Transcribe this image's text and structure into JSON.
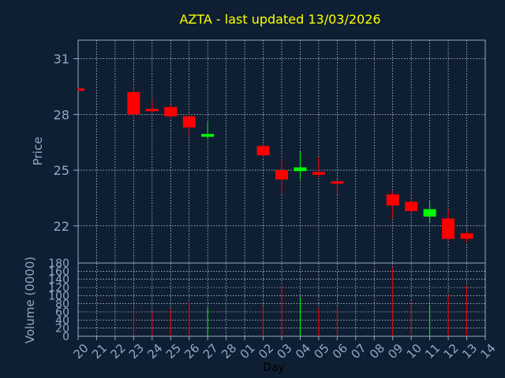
{
  "chart_data": {
    "type": "candlestick",
    "title": "AZTA - last updated 13/03/2026",
    "xlabel": "Day",
    "price_axis": {
      "label": "Price",
      "ticks": [
        22,
        25,
        28,
        31
      ],
      "ylim": [
        20,
        32
      ]
    },
    "volume_axis": {
      "label": "Volume (0000)",
      "ticks": [
        0,
        20,
        40,
        60,
        80,
        100,
        120,
        140,
        160,
        180
      ],
      "ylim": [
        0,
        180
      ]
    },
    "grid": true,
    "days": [
      "20",
      "21",
      "22",
      "23",
      "24",
      "25",
      "26",
      "27",
      "28",
      "01",
      "02",
      "03",
      "04",
      "05",
      "06",
      "07",
      "08",
      "09",
      "10",
      "11",
      "12",
      "13",
      "14"
    ],
    "candles": [
      {
        "day": "20",
        "open": 29.4,
        "high": 29.4,
        "low": 29.3,
        "close": 29.3,
        "volume": null
      },
      {
        "day": "23",
        "open": 29.2,
        "high": 29.5,
        "low": 27.8,
        "close": 28.0,
        "volume": 65
      },
      {
        "day": "24",
        "open": 28.3,
        "high": 28.8,
        "low": 28.1,
        "close": 28.2,
        "volume": 62
      },
      {
        "day": "25",
        "open": 28.4,
        "high": 28.5,
        "low": 27.8,
        "close": 27.9,
        "volume": 68
      },
      {
        "day": "26",
        "open": 27.9,
        "high": 28.0,
        "low": 26.8,
        "close": 27.3,
        "volume": 85
      },
      {
        "day": "27",
        "open": 26.8,
        "high": 27.6,
        "low": 26.7,
        "close": 26.95,
        "volume": 72
      },
      {
        "day": "02",
        "open": 26.3,
        "high": 26.4,
        "low": 25.7,
        "close": 25.8,
        "volume": 75
      },
      {
        "day": "03",
        "open": 25.0,
        "high": 25.6,
        "low": 23.7,
        "close": 24.5,
        "volume": 125
      },
      {
        "day": "04",
        "open": 24.95,
        "high": 26.0,
        "low": 24.5,
        "close": 25.15,
        "volume": 95
      },
      {
        "day": "05",
        "open": 24.9,
        "high": 25.7,
        "low": 24.6,
        "close": 24.75,
        "volume": 70
      },
      {
        "day": "06",
        "open": 24.4,
        "high": 24.5,
        "low": 23.7,
        "close": 24.3,
        "volume": 73
      },
      {
        "day": "09",
        "open": 23.7,
        "high": 23.9,
        "low": 22.4,
        "close": 23.1,
        "volume": 170
      },
      {
        "day": "10",
        "open": 23.3,
        "high": 23.5,
        "low": 22.7,
        "close": 22.8,
        "volume": 88
      },
      {
        "day": "11",
        "open": 22.5,
        "high": 23.3,
        "low": 22.2,
        "close": 22.9,
        "volume": 78
      },
      {
        "day": "12",
        "open": 22.4,
        "high": 22.9,
        "low": 21.2,
        "close": 21.3,
        "volume": 103
      },
      {
        "day": "13",
        "open": 21.6,
        "high": 21.7,
        "low": 21.1,
        "close": 21.3,
        "volume": 125
      }
    ],
    "colors": {
      "up": "#00ff00",
      "down": "#ff0000",
      "title": "#ffff00",
      "axis_text": "#8fa9c8",
      "grid": "#ffffff"
    }
  }
}
